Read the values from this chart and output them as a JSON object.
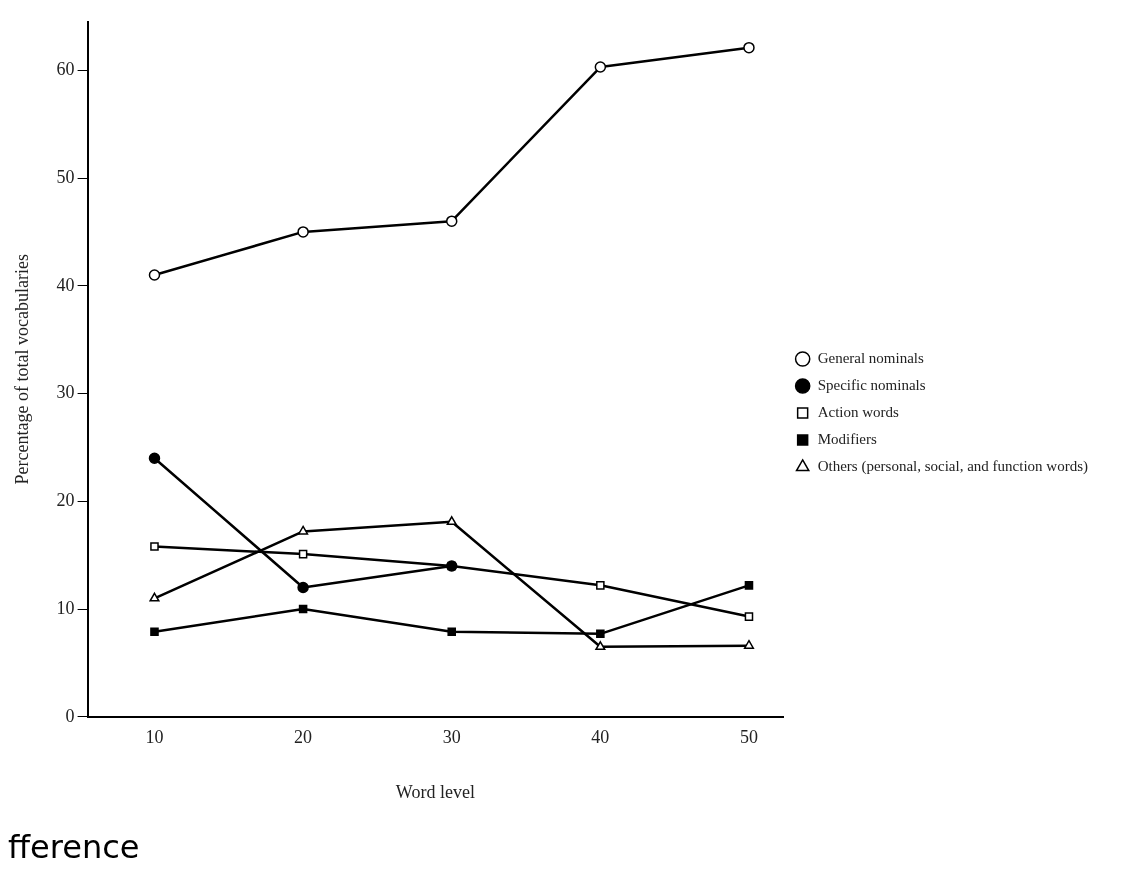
{
  "chart_data": {
    "type": "line",
    "xlabel": "Word level",
    "ylabel": "Percentage of total vocabularies",
    "x": [
      10,
      20,
      30,
      40,
      50
    ],
    "xlim": [
      5.5,
      52.3
    ],
    "xticks": [
      10,
      20,
      30,
      40,
      50
    ],
    "ylim": [
      0,
      64.5
    ],
    "yticks": [
      0,
      10,
      20,
      30,
      40,
      50,
      60
    ],
    "grid": false,
    "legend": "right",
    "line_style": "solid",
    "annotations": [
      "fference"
    ],
    "series": [
      {
        "name": "General nominals",
        "color": "#000000",
        "marker": "circle",
        "colors": [
          "#ffffff",
          "#ffffff",
          "#ffffff",
          "#ffffff",
          "#ffffff"
        ],
        "values": [
          41,
          45,
          46,
          60.3,
          62.1
        ]
      },
      {
        "name": "Specific nominals",
        "color": "#000000",
        "marker": "circle",
        "colors": [
          "#000000",
          "#000000",
          "#000000",
          "#000000",
          "#000000"
        ],
        "values": [
          24,
          12,
          14,
          null,
          null
        ]
      },
      {
        "name": "Action words",
        "color": "#000000",
        "marker": "square",
        "colors": [
          "#ffffff",
          "#ffffff",
          "#ffffff",
          "#ffffff",
          "#ffffff"
        ],
        "values": [
          15.8,
          15.1,
          14,
          12.2,
          9.3
        ]
      },
      {
        "name": "Modifiers",
        "color": "#000000",
        "marker": "square",
        "colors": [
          "#000000",
          "#000000",
          "#000000",
          "#000000",
          "#000000"
        ],
        "values": [
          7.9,
          10,
          7.9,
          7.7,
          12.2
        ]
      },
      {
        "name": "Others (personal, social, and function words)",
        "color": "#000000",
        "marker": "triangle",
        "colors": [
          "#ffffff",
          "#ffffff",
          "#ffffff",
          "#ffffff",
          "#ffffff"
        ],
        "values": [
          11,
          17.2,
          18.1,
          6.5,
          6.6
        ]
      }
    ]
  }
}
